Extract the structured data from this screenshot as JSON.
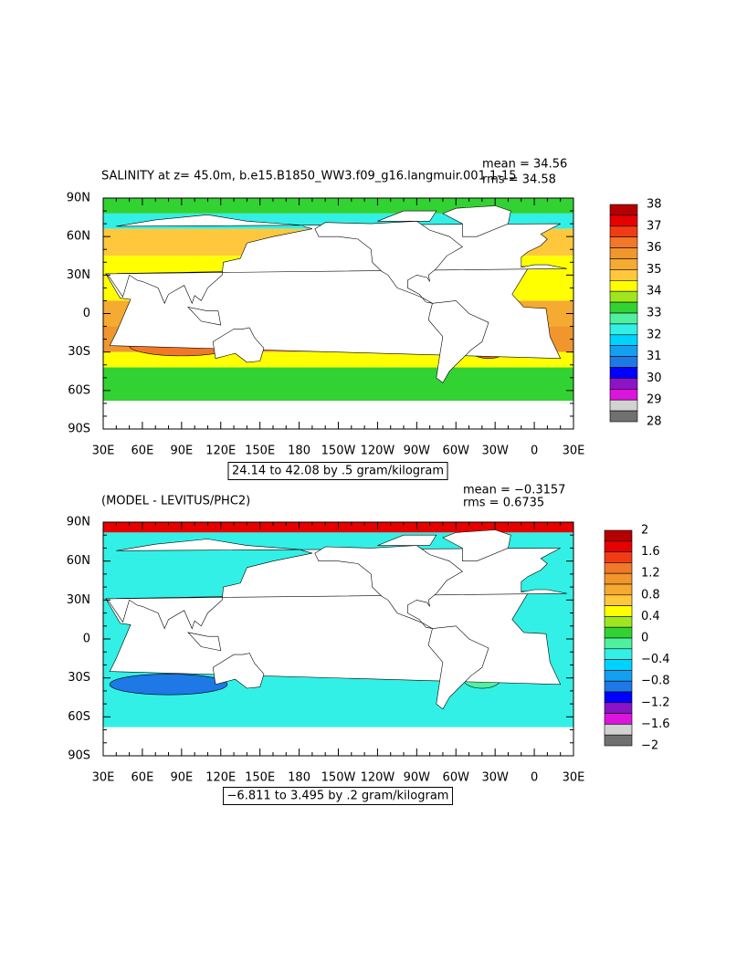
{
  "panels": [
    {
      "title": "SALINITY at z=  45.0m, b.e15.B1850_WW3.f09_g16.langmuir.001 1-15",
      "mean": "mean = 34.56",
      "rms": "rms = 34.58",
      "range_note": "24.14 to 42.08 by .5 gram/kilogram",
      "colorbar": {
        "labels": [
          "38",
          "37",
          "36",
          "35",
          "34",
          "33",
          "32",
          "31",
          "30",
          "29",
          "28"
        ],
        "colors": [
          "#b40000",
          "#e60000",
          "#f03c14",
          "#f07828",
          "#f0962d",
          "#f5aa32",
          "#ffc83c",
          "#ffff00",
          "#a0e61e",
          "#32d232",
          "#50f0a0",
          "#32f0e6",
          "#00d2ff",
          "#14a0f0",
          "#1e78e6",
          "#0000ff",
          "#8c14c8",
          "#dc14dc",
          "#d2d2d2",
          "#707070"
        ]
      }
    },
    {
      "title": "(MODEL - LEVITUS/PHC2)",
      "mean": "mean = −0.3157",
      "rms": "rms = 0.6735",
      "range_note": "−6.811 to 3.495 by .2 gram/kilogram",
      "colorbar": {
        "labels": [
          "2",
          "1.6",
          "1.2",
          "0.8",
          "0.4",
          "0",
          "−0.4",
          "−0.8",
          "−1.2",
          "−1.6",
          "−2"
        ],
        "colors": [
          "#b40000",
          "#e60000",
          "#f03c14",
          "#f07828",
          "#f0962d",
          "#f5aa32",
          "#ffc83c",
          "#ffff00",
          "#a0e61e",
          "#32d232",
          "#50f0a0",
          "#32f0e6",
          "#00d2ff",
          "#14a0f0",
          "#1e78e6",
          "#0000ff",
          "#8c14c8",
          "#dc14dc",
          "#d2d2d2",
          "#707070"
        ]
      }
    }
  ],
  "lon_labels": [
    "30E",
    "60E",
    "90E",
    "120E",
    "150E",
    "180",
    "150W",
    "120W",
    "90W",
    "60W",
    "30W",
    "0",
    "30E"
  ],
  "lat_labels": [
    "90N",
    "60N",
    "30N",
    "0",
    "30S",
    "60S",
    "90S"
  ]
}
